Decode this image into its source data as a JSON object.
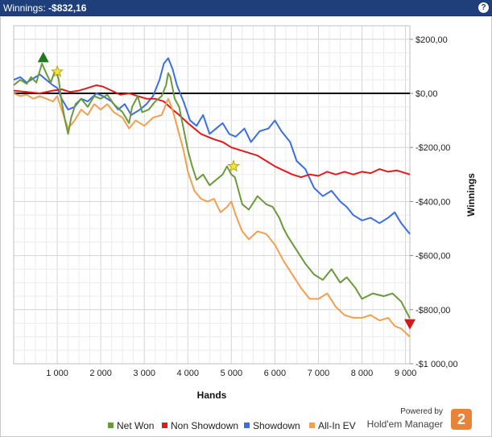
{
  "window": {
    "title_label": "Winnings:",
    "title_value": "-$832,16",
    "help_glyph": "?"
  },
  "branding": {
    "powered_by": "Powered by",
    "product": "Hold'em Manager",
    "logo_glyph": "2"
  },
  "chart_data": {
    "type": "line",
    "title": "",
    "xlabel": "Hands",
    "ylabel": "Winnings",
    "xlim": [
      0,
      9100
    ],
    "ylim": [
      -1000,
      250
    ],
    "grid": true,
    "legend_position": "bottom",
    "x_ticks": [
      1000,
      2000,
      3000,
      4000,
      5000,
      6000,
      7000,
      8000,
      9000
    ],
    "x_tick_labels": [
      "1 000",
      "2 000",
      "3 000",
      "4 000",
      "5 000",
      "6 000",
      "7 000",
      "8 000",
      "9 000"
    ],
    "y_ticks": [
      200,
      0,
      -200,
      -400,
      -600,
      -800,
      -1000
    ],
    "y_tick_labels": [
      "$200,00",
      "$0,00",
      "-$200,00",
      "-$400,00",
      "-$600,00",
      "-$800,00",
      "-$1 000,00"
    ],
    "zero_line": 0,
    "series": [
      {
        "name": "Net Won",
        "color": "#6a9a3a",
        "points": [
          [
            0,
            30
          ],
          [
            150,
            50
          ],
          [
            300,
            35
          ],
          [
            400,
            60
          ],
          [
            520,
            40
          ],
          [
            650,
            110
          ],
          [
            760,
            70
          ],
          [
            850,
            40
          ],
          [
            950,
            85
          ],
          [
            1030,
            55
          ],
          [
            1100,
            -30
          ],
          [
            1180,
            -100
          ],
          [
            1250,
            -150
          ],
          [
            1320,
            -90
          ],
          [
            1420,
            -40
          ],
          [
            1550,
            -20
          ],
          [
            1700,
            -50
          ],
          [
            1850,
            -10
          ],
          [
            2000,
            -20
          ],
          [
            2150,
            -5
          ],
          [
            2300,
            -40
          ],
          [
            2500,
            -70
          ],
          [
            2650,
            -110
          ],
          [
            2720,
            -50
          ],
          [
            2850,
            -10
          ],
          [
            2950,
            -70
          ],
          [
            3100,
            -60
          ],
          [
            3250,
            -30
          ],
          [
            3400,
            -10
          ],
          [
            3500,
            30
          ],
          [
            3550,
            75
          ],
          [
            3600,
            60
          ],
          [
            3700,
            -20
          ],
          [
            3800,
            -50
          ],
          [
            3900,
            -130
          ],
          [
            4000,
            -210
          ],
          [
            4100,
            -270
          ],
          [
            4200,
            -320
          ],
          [
            4350,
            -300
          ],
          [
            4500,
            -340
          ],
          [
            4650,
            -320
          ],
          [
            4800,
            -300
          ],
          [
            4900,
            -270
          ],
          [
            5000,
            -300
          ],
          [
            5080,
            -310
          ],
          [
            5150,
            -350
          ],
          [
            5250,
            -410
          ],
          [
            5400,
            -430
          ],
          [
            5600,
            -380
          ],
          [
            5800,
            -410
          ],
          [
            5950,
            -420
          ],
          [
            6100,
            -460
          ],
          [
            6200,
            -500
          ],
          [
            6300,
            -530
          ],
          [
            6500,
            -580
          ],
          [
            6700,
            -630
          ],
          [
            6900,
            -670
          ],
          [
            7100,
            -690
          ],
          [
            7300,
            -650
          ],
          [
            7500,
            -700
          ],
          [
            7650,
            -680
          ],
          [
            7850,
            -720
          ],
          [
            8000,
            -760
          ],
          [
            8250,
            -740
          ],
          [
            8500,
            -750
          ],
          [
            8700,
            -740
          ],
          [
            8900,
            -770
          ],
          [
            9100,
            -832
          ]
        ]
      },
      {
        "name": "Non Showdown",
        "color": "#e31a1c",
        "points": [
          [
            0,
            10
          ],
          [
            300,
            5
          ],
          [
            600,
            0
          ],
          [
            900,
            10
          ],
          [
            1100,
            15
          ],
          [
            1300,
            5
          ],
          [
            1500,
            10
          ],
          [
            1700,
            20
          ],
          [
            1900,
            30
          ],
          [
            2050,
            25
          ],
          [
            2250,
            10
          ],
          [
            2450,
            -5
          ],
          [
            2650,
            0
          ],
          [
            2850,
            -10
          ],
          [
            3050,
            -20
          ],
          [
            3250,
            -20
          ],
          [
            3450,
            -30
          ],
          [
            3650,
            -60
          ],
          [
            3800,
            -80
          ],
          [
            4000,
            -110
          ],
          [
            4150,
            -130
          ],
          [
            4300,
            -150
          ],
          [
            4450,
            -160
          ],
          [
            4600,
            -170
          ],
          [
            4800,
            -180
          ],
          [
            5000,
            -200
          ],
          [
            5200,
            -210
          ],
          [
            5400,
            -220
          ],
          [
            5600,
            -230
          ],
          [
            5800,
            -250
          ],
          [
            6000,
            -270
          ],
          [
            6200,
            -285
          ],
          [
            6400,
            -300
          ],
          [
            6600,
            -310
          ],
          [
            6800,
            -300
          ],
          [
            7000,
            -305
          ],
          [
            7200,
            -290
          ],
          [
            7400,
            -300
          ],
          [
            7600,
            -290
          ],
          [
            7800,
            -300
          ],
          [
            8000,
            -290
          ],
          [
            8200,
            -295
          ],
          [
            8400,
            -280
          ],
          [
            8600,
            -290
          ],
          [
            8800,
            -285
          ],
          [
            9100,
            -300
          ]
        ]
      },
      {
        "name": "Showdown",
        "color": "#3b6fe0",
        "points": [
          [
            0,
            50
          ],
          [
            150,
            60
          ],
          [
            300,
            40
          ],
          [
            450,
            55
          ],
          [
            600,
            70
          ],
          [
            750,
            50
          ],
          [
            900,
            30
          ],
          [
            1000,
            20
          ],
          [
            1100,
            -20
          ],
          [
            1250,
            -60
          ],
          [
            1400,
            -50
          ],
          [
            1550,
            -20
          ],
          [
            1700,
            -30
          ],
          [
            1900,
            0
          ],
          [
            2050,
            -10
          ],
          [
            2250,
            -30
          ],
          [
            2400,
            -60
          ],
          [
            2550,
            -40
          ],
          [
            2700,
            -80
          ],
          [
            2900,
            -60
          ],
          [
            3050,
            -40
          ],
          [
            3200,
            -10
          ],
          [
            3350,
            50
          ],
          [
            3450,
            110
          ],
          [
            3550,
            130
          ],
          [
            3650,
            90
          ],
          [
            3750,
            30
          ],
          [
            3900,
            -30
          ],
          [
            4050,
            -100
          ],
          [
            4200,
            -120
          ],
          [
            4350,
            -80
          ],
          [
            4500,
            -150
          ],
          [
            4650,
            -130
          ],
          [
            4800,
            -110
          ],
          [
            4950,
            -150
          ],
          [
            5100,
            -160
          ],
          [
            5300,
            -130
          ],
          [
            5450,
            -180
          ],
          [
            5650,
            -140
          ],
          [
            5850,
            -130
          ],
          [
            6000,
            -100
          ],
          [
            6150,
            -140
          ],
          [
            6350,
            -180
          ],
          [
            6500,
            -250
          ],
          [
            6700,
            -280
          ],
          [
            6900,
            -350
          ],
          [
            7100,
            -380
          ],
          [
            7300,
            -360
          ],
          [
            7500,
            -400
          ],
          [
            7650,
            -420
          ],
          [
            7800,
            -450
          ],
          [
            8000,
            -470
          ],
          [
            8200,
            -460
          ],
          [
            8400,
            -480
          ],
          [
            8600,
            -460
          ],
          [
            8750,
            -440
          ],
          [
            8900,
            -480
          ],
          [
            9100,
            -520
          ]
        ]
      },
      {
        "name": "All-In EV",
        "color": "#f0a050",
        "points": [
          [
            0,
            0
          ],
          [
            150,
            -10
          ],
          [
            300,
            -5
          ],
          [
            450,
            -20
          ],
          [
            600,
            -10
          ],
          [
            750,
            -20
          ],
          [
            900,
            -30
          ],
          [
            1000,
            -10
          ],
          [
            1100,
            -60
          ],
          [
            1250,
            -130
          ],
          [
            1400,
            -100
          ],
          [
            1550,
            -60
          ],
          [
            1700,
            -80
          ],
          [
            1850,
            -40
          ],
          [
            2000,
            -60
          ],
          [
            2150,
            -40
          ],
          [
            2300,
            -70
          ],
          [
            2500,
            -90
          ],
          [
            2650,
            -130
          ],
          [
            2800,
            -100
          ],
          [
            3000,
            -120
          ],
          [
            3200,
            -90
          ],
          [
            3400,
            -80
          ],
          [
            3550,
            -20
          ],
          [
            3650,
            -60
          ],
          [
            3750,
            -120
          ],
          [
            3900,
            -210
          ],
          [
            4000,
            -290
          ],
          [
            4150,
            -360
          ],
          [
            4300,
            -390
          ],
          [
            4450,
            -400
          ],
          [
            4600,
            -390
          ],
          [
            4750,
            -440
          ],
          [
            4900,
            -420
          ],
          [
            5000,
            -400
          ],
          [
            5100,
            -450
          ],
          [
            5250,
            -510
          ],
          [
            5400,
            -540
          ],
          [
            5600,
            -510
          ],
          [
            5800,
            -520
          ],
          [
            6000,
            -560
          ],
          [
            6200,
            -620
          ],
          [
            6400,
            -670
          ],
          [
            6600,
            -720
          ],
          [
            6800,
            -760
          ],
          [
            7000,
            -760
          ],
          [
            7200,
            -740
          ],
          [
            7400,
            -790
          ],
          [
            7600,
            -820
          ],
          [
            7800,
            -830
          ],
          [
            8000,
            -830
          ],
          [
            8200,
            -820
          ],
          [
            8400,
            -840
          ],
          [
            8600,
            -830
          ],
          [
            8750,
            -860
          ],
          [
            8900,
            -870
          ],
          [
            9100,
            -900
          ]
        ]
      }
    ],
    "markers": [
      {
        "type": "triangle-up",
        "color": "#1e7a1e",
        "x": 680,
        "y": 130
      },
      {
        "type": "star",
        "color": "#f5e23a",
        "x": 1000,
        "y": 80
      },
      {
        "type": "star",
        "color": "#f5e23a",
        "x": 5050,
        "y": -270
      },
      {
        "type": "triangle-down",
        "color": "#d11a1a",
        "x": 9100,
        "y": -850
      }
    ]
  }
}
